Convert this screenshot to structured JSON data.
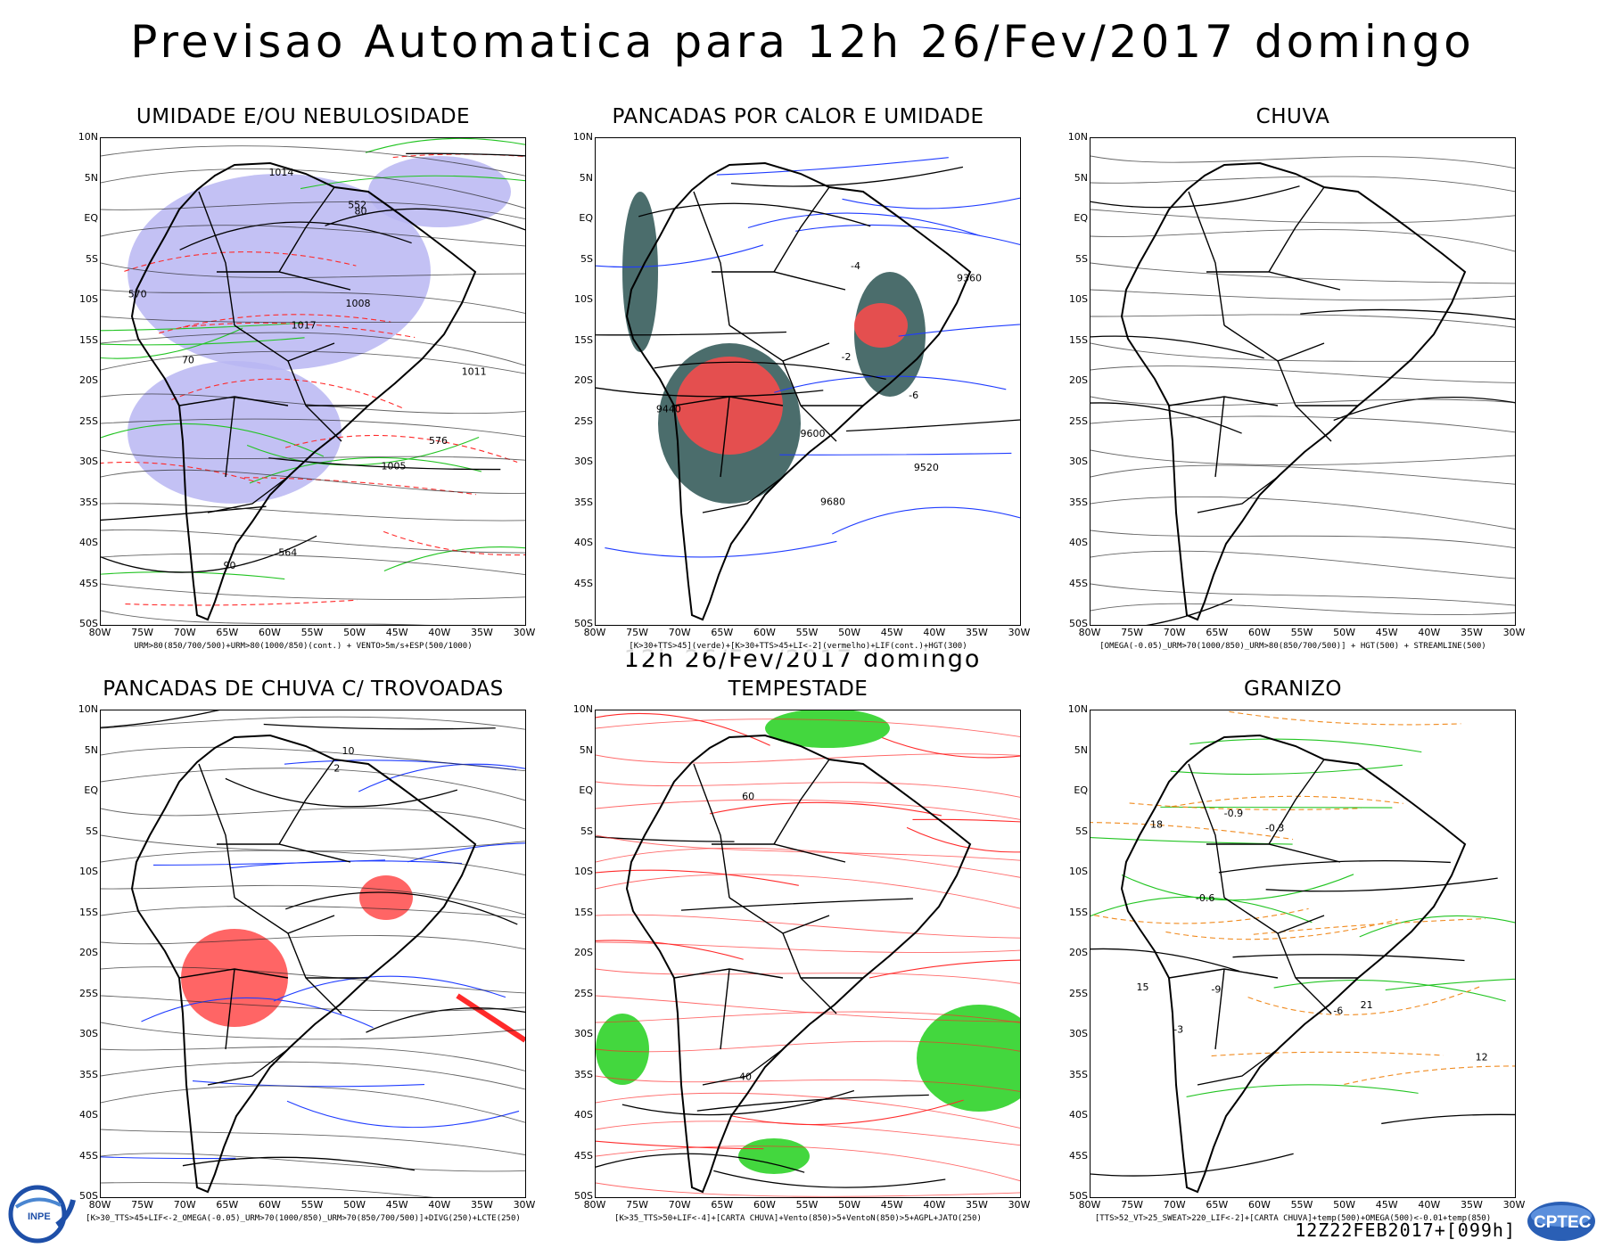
{
  "header": {
    "title": "Previsao Automatica  para 12h 26/Fev/2017 domingo",
    "subtitle": "12h 26/Fev/2017 domingo"
  },
  "axes": {
    "lat_labels": [
      "10N",
      "5N",
      "EQ",
      "5S",
      "10S",
      "15S",
      "20S",
      "25S",
      "30S",
      "35S",
      "40S",
      "45S",
      "50S"
    ],
    "lon_labels": [
      "80W",
      "75W",
      "70W",
      "65W",
      "60W",
      "55W",
      "50W",
      "45W",
      "40W",
      "35W",
      "30W"
    ]
  },
  "panels": [
    {
      "title": "UMIDADE E/OU NEBULOSIDADE",
      "caption": "URM>80(850/700/500)+URM>80(1000/850)(cont.) + VENTO>5m/s+ESP(500/1000)",
      "contour_labels": [
        "1014",
        "1011",
        "1008",
        "1005",
        "1017",
        "576",
        "570",
        "564",
        "552",
        "80",
        "70",
        "90"
      ]
    },
    {
      "title": "PANCADAS POR CALOR E UMIDADE",
      "caption": "[K>30+TTS>45](verde)+[K>30+TTS>45+LI<-2](vermelho)+LIF(cont.)+HGT(300)",
      "contour_labels": [
        "9680",
        "9600",
        "9520",
        "9440",
        "9360",
        "-2",
        "-4",
        "-6"
      ]
    },
    {
      "title": "CHUVA",
      "caption": "[OMEGA(-0.05)_URM>70(1000/850)_URM>80(850/700/500)] + HGT(500) + STREAMLINE(500)",
      "contour_labels": []
    },
    {
      "title": "PANCADAS DE CHUVA C/ TROVOADAS",
      "caption": "[K>30_TTS>45+LIF<-2_OMEGA(-0.05)_URM>70(1000/850)_URM>70(850/700/500)]+DIVG(250)+LCTE(250)",
      "contour_labels": [
        "10",
        "2"
      ]
    },
    {
      "title": "TEMPESTADE",
      "caption": "[K>35_TTS>50+LIF<-4]+[CARTA CHUVA]+Vento(850)>5+VentoN(850)>5+AGPL+JATO(250)",
      "contour_labels": [
        "40",
        "60"
      ]
    },
    {
      "title": "GRANIZO",
      "caption": "[TTS>52_VT>25_SWEAT>220_LIF<-2]+[CARTA CHUVA]+temp(500)+OMEGA(500)<-0.01+temp(850)",
      "contour_labels": [
        "-6",
        "-9",
        "-3",
        "-0.3",
        "-0.6",
        "-0.9",
        "12",
        "15",
        "18",
        "21"
      ]
    }
  ],
  "footer": {
    "run_label": "12Z22FEB2017+[099h]",
    "logo_left": "INPE",
    "logo_right": "CPTEC"
  },
  "colors": {
    "contour_green": "#22c422",
    "contour_red": "#ff2a2a",
    "contour_blue": "#1f3cff",
    "shade_lavender": "#b9b6f2",
    "shade_dark_teal": "#2c5352",
    "shade_salmon": "#ff4a4a",
    "shade_bright_green": "#22d01c",
    "dashed_orange": "#f08a1e"
  }
}
